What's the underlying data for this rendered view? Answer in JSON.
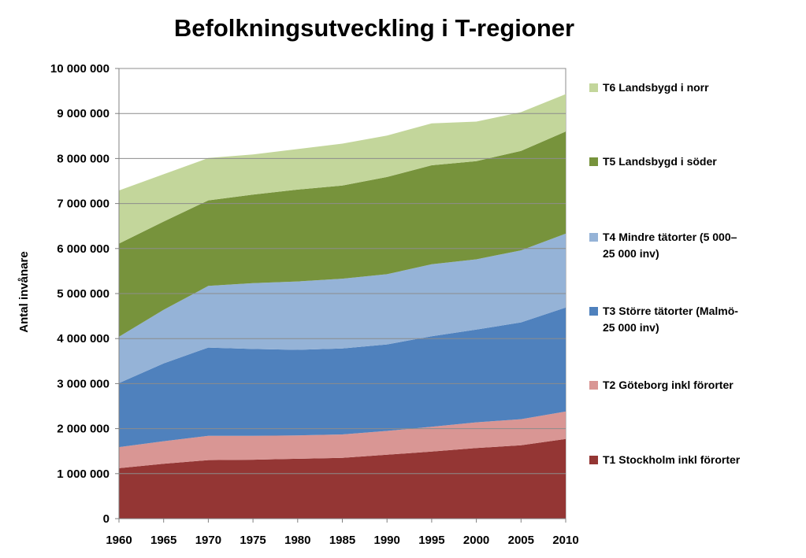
{
  "chart_data": {
    "type": "area",
    "stacked": true,
    "title": "Befolkningsutveckling i T-regioner",
    "xlabel": "",
    "ylabel": "Antal invånare",
    "x": [
      1960,
      1965,
      1970,
      1975,
      1980,
      1985,
      1990,
      1995,
      2000,
      2005,
      2010
    ],
    "ylim": [
      0,
      10000000
    ],
    "yticks": [
      0,
      1000000,
      2000000,
      3000000,
      4000000,
      5000000,
      6000000,
      7000000,
      8000000,
      9000000,
      10000000
    ],
    "ytick_labels": [
      "0",
      "1 000 000",
      "2 000 000",
      "3 000 000",
      "4 000 000",
      "5 000 000",
      "6 000 000",
      "7 000 000",
      "8 000 000",
      "9 000 000",
      "10 000 000"
    ],
    "xtick_labels": [
      "1960",
      "1965",
      "1970",
      "1975",
      "1980",
      "1985",
      "1990",
      "1995",
      "2000",
      "2005",
      "2010"
    ],
    "grid": "horizontal",
    "legend_position": "right",
    "series": [
      {
        "name": "T1 Stockholm inkl förorter",
        "color": "#943634",
        "values": [
          1120000,
          1220000,
          1300000,
          1310000,
          1330000,
          1350000,
          1420000,
          1490000,
          1570000,
          1630000,
          1770000
        ]
      },
      {
        "name": "T2 Göteborg inkl förorter",
        "color": "#d99694",
        "values": [
          470000,
          500000,
          540000,
          530000,
          520000,
          520000,
          530000,
          550000,
          570000,
          580000,
          610000
        ]
      },
      {
        "name": "T3 Större tätorter (Malmö-25 000 inv)",
        "color": "#4f81bd",
        "values": [
          1420000,
          1730000,
          1960000,
          1930000,
          1900000,
          1910000,
          1920000,
          2010000,
          2060000,
          2150000,
          2310000
        ]
      },
      {
        "name": "T4 Mindre tätorter (5 000–25 000 inv)",
        "color": "#95b3d7",
        "values": [
          1030000,
          1190000,
          1370000,
          1460000,
          1520000,
          1550000,
          1560000,
          1600000,
          1560000,
          1600000,
          1640000
        ]
      },
      {
        "name": "T5 Landsbygd i söder",
        "color": "#77933c",
        "values": [
          2070000,
          1960000,
          1900000,
          1970000,
          2040000,
          2070000,
          2160000,
          2200000,
          2180000,
          2210000,
          2270000
        ]
      },
      {
        "name": "T6 Landsbygd i norr",
        "color": "#c3d69b",
        "values": [
          1180000,
          1050000,
          940000,
          890000,
          900000,
          930000,
          920000,
          930000,
          880000,
          860000,
          830000
        ]
      }
    ],
    "legend_lines": {
      "t6": [
        "T6 Landsbygd i norr"
      ],
      "t5": [
        "T5 Landsbygd i söder"
      ],
      "t4": [
        "T4 Mindre tätorter (5 000–",
        "25 000 inv)"
      ],
      "t3": [
        "T3 Större tätorter (Malmö-",
        "25 000 inv)"
      ],
      "t2": [
        "T2 Göteborg inkl förorter"
      ],
      "t1": [
        "T1 Stockholm inkl förorter"
      ]
    }
  }
}
